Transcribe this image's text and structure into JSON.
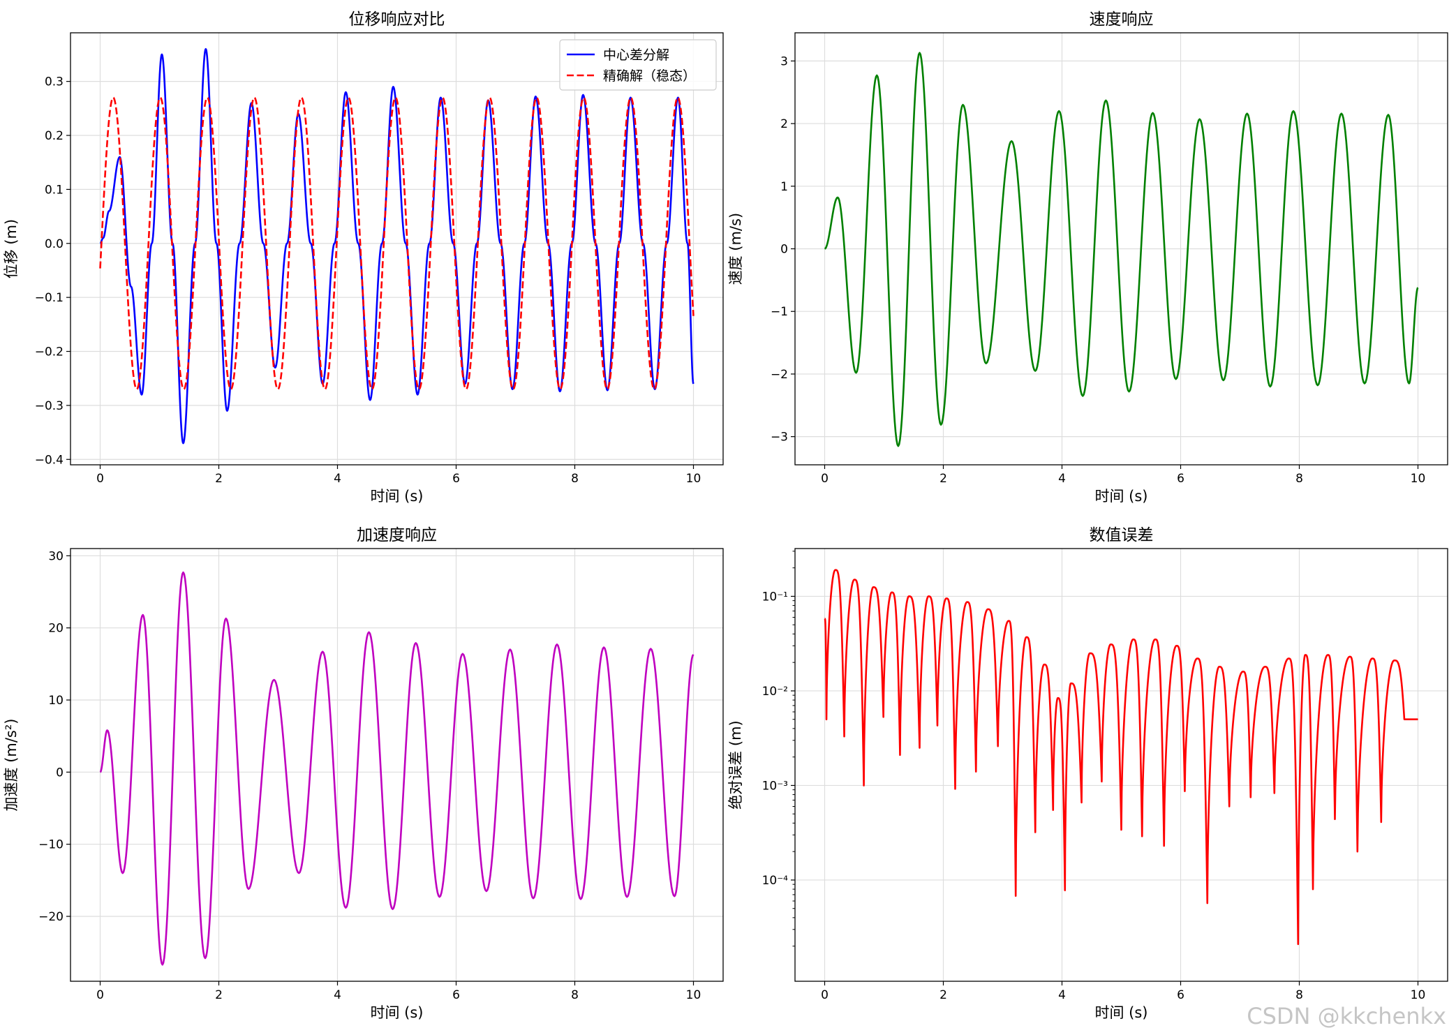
{
  "watermark": "CSDN @kkchenkx",
  "chart_data": [
    {
      "type": "line",
      "title": "位移响应对比",
      "xlabel": "时间 (s)",
      "ylabel": "位移 (m)",
      "xlim": [
        -0.5,
        10.5
      ],
      "ylim": [
        -0.41,
        0.39
      ],
      "xticks": [
        0,
        2,
        4,
        6,
        8,
        10
      ],
      "yticks": [
        -0.4,
        -0.3,
        -0.2,
        -0.1,
        0.0,
        0.1,
        0.2,
        0.3
      ],
      "ytick_labels": [
        "−0.4",
        "−0.3",
        "−0.2",
        "−0.1",
        "0.0",
        "0.1",
        "0.2",
        "0.3"
      ],
      "grid": true,
      "legend": "top-right",
      "series": [
        {
          "name": "中心差分解",
          "color": "#0000ff",
          "style": "solid",
          "x": [
            0,
            0.05,
            0.15,
            0.33,
            0.52,
            0.7,
            0.87,
            1.04,
            1.22,
            1.4,
            1.6,
            1.78,
            1.96,
            2.14,
            2.35,
            2.55,
            2.75,
            2.95,
            3.15,
            3.34,
            3.55,
            3.75,
            3.95,
            4.14,
            4.35,
            4.55,
            4.75,
            4.94,
            5.15,
            5.35,
            5.55,
            5.74,
            5.95,
            6.15,
            6.35,
            6.54,
            6.75,
            6.95,
            7.15,
            7.34,
            7.55,
            7.75,
            7.95,
            8.14,
            8.35,
            8.55,
            8.75,
            8.94,
            9.15,
            9.35,
            9.55,
            9.74,
            9.9,
            10.0
          ],
          "y": [
            0.0,
            0.01,
            0.06,
            0.16,
            -0.08,
            -0.28,
            0.0,
            0.35,
            0.0,
            -0.37,
            0.0,
            0.36,
            0.0,
            -0.31,
            0.0,
            0.26,
            0.0,
            -0.23,
            0.0,
            0.24,
            0.0,
            -0.26,
            0.0,
            0.28,
            0.0,
            -0.29,
            0.0,
            0.29,
            0.0,
            -0.28,
            0.0,
            0.27,
            0.0,
            -0.26,
            0.0,
            0.265,
            0.0,
            -0.27,
            0.0,
            0.272,
            0.0,
            -0.274,
            0.0,
            0.275,
            0.0,
            -0.272,
            0.0,
            0.27,
            0.0,
            -0.27,
            0.0,
            0.27,
            0.0,
            -0.26
          ]
        },
        {
          "name": "精确解（稳态）",
          "color": "#ff0000",
          "style": "dashed",
          "amplitude": 0.27,
          "period": 0.793,
          "peak_time": 0.22,
          "x_range": [
            0,
            10
          ]
        }
      ]
    },
    {
      "type": "line",
      "title": "速度响应",
      "xlabel": "时间 (s)",
      "ylabel": "速度 (m/s)",
      "xlim": [
        -0.5,
        10.5
      ],
      "ylim": [
        -3.45,
        3.45
      ],
      "xticks": [
        0,
        2,
        4,
        6,
        8,
        10
      ],
      "yticks": [
        -3,
        -2,
        -1,
        0,
        1,
        2,
        3
      ],
      "ytick_labels": [
        "−3",
        "−2",
        "−1",
        "0",
        "1",
        "2",
        "3"
      ],
      "grid": true,
      "series": [
        {
          "name": "",
          "color": "#008000",
          "style": "solid",
          "x": [
            0,
            0.22,
            0.53,
            0.88,
            1.24,
            1.6,
            1.96,
            2.33,
            2.72,
            3.15,
            3.55,
            3.95,
            4.35,
            4.74,
            5.13,
            5.53,
            5.92,
            6.32,
            6.72,
            7.12,
            7.51,
            7.9,
            8.31,
            8.71,
            9.1,
            9.5,
            9.85,
            10.0
          ],
          "y": [
            0,
            0.82,
            -1.98,
            2.77,
            -3.15,
            3.13,
            -2.81,
            2.3,
            -1.83,
            1.72,
            -1.95,
            2.2,
            -2.35,
            2.37,
            -2.28,
            2.17,
            -2.08,
            2.07,
            -2.1,
            2.16,
            -2.2,
            2.2,
            -2.18,
            2.16,
            -2.15,
            2.14,
            -2.15,
            -0.62
          ]
        }
      ]
    },
    {
      "type": "line",
      "title": "加速度响应",
      "xlabel": "时间 (s)",
      "ylabel": "加速度 (m/s²)",
      "xlim": [
        -0.5,
        10.5
      ],
      "ylim": [
        -29,
        31
      ],
      "xticks": [
        0,
        2,
        4,
        6,
        8,
        10
      ],
      "yticks": [
        -20,
        -10,
        0,
        10,
        20,
        30
      ],
      "ytick_labels": [
        "−20",
        "−10",
        "0",
        "10",
        "20",
        "30"
      ],
      "grid": true,
      "series": [
        {
          "name": "",
          "color": "#bf00bf",
          "style": "solid",
          "x": [
            0,
            0.12,
            0.38,
            0.72,
            1.05,
            1.4,
            1.77,
            2.12,
            2.5,
            2.93,
            3.35,
            3.75,
            4.14,
            4.53,
            4.93,
            5.32,
            5.72,
            6.11,
            6.51,
            6.91,
            7.3,
            7.7,
            8.1,
            8.49,
            8.88,
            9.28,
            9.68,
            10.0
          ],
          "y": [
            0,
            5.8,
            -14.0,
            21.8,
            -26.7,
            27.7,
            -25.8,
            21.3,
            -16.2,
            12.8,
            -14.0,
            16.7,
            -18.8,
            19.4,
            -19.0,
            17.9,
            -17.3,
            16.4,
            -16.5,
            17.0,
            -17.5,
            17.7,
            -17.6,
            17.3,
            -17.3,
            17.1,
            -17.2,
            16.3
          ]
        }
      ]
    },
    {
      "type": "line",
      "title": "数值误差",
      "xlabel": "时间 (s)",
      "ylabel": "绝对误差 (m)",
      "xlim": [
        -0.5,
        10.5
      ],
      "ylim": [
        8.5e-06,
        0.32
      ],
      "yscale": "log",
      "xticks": [
        0,
        2,
        4,
        6,
        8,
        10
      ],
      "yticks": [
        0.1,
        0.01,
        0.001,
        0.0001
      ],
      "ytick_labels": [
        "10⁻¹",
        "10⁻²",
        "10⁻³",
        "10⁻⁴"
      ],
      "grid": true,
      "series": [
        {
          "name": "",
          "color": "#ff0000",
          "style": "solid",
          "x": [
            0,
            0.03,
            0.18,
            0.33,
            0.5,
            0.66,
            0.82,
            0.99,
            1.13,
            1.27,
            1.42,
            1.6,
            1.75,
            1.9,
            2.05,
            2.2,
            2.4,
            2.55,
            2.75,
            2.92,
            3.1,
            3.22,
            3.4,
            3.55,
            3.7,
            3.85,
            3.93,
            4.05,
            4.15,
            4.33,
            4.47,
            4.67,
            4.82,
            5.0,
            5.2,
            5.35,
            5.57,
            5.72,
            5.93,
            6.07,
            6.28,
            6.45,
            6.65,
            6.82,
            7.05,
            7.18,
            7.42,
            7.58,
            7.82,
            7.98,
            8.1,
            8.23,
            8.48,
            8.6,
            8.85,
            8.98,
            9.23,
            9.38,
            9.6,
            9.77,
            9.92,
            10.0
          ],
          "y": [
            0.058,
            0.005,
            0.19,
            0.0033,
            0.15,
            0.001,
            0.125,
            0.0053,
            0.11,
            0.0021,
            0.1,
            0.0025,
            0.1,
            0.0043,
            0.095,
            0.00092,
            0.087,
            0.0014,
            0.073,
            0.0026,
            0.055,
            6.8e-05,
            0.037,
            0.00032,
            0.019,
            0.00055,
            0.0084,
            7.8e-05,
            0.012,
            0.00066,
            0.025,
            0.0011,
            0.031,
            0.00034,
            0.035,
            0.00029,
            0.035,
            0.00023,
            0.03,
            0.00087,
            0.022,
            5.7e-05,
            0.018,
            0.0006,
            0.016,
            0.00075,
            0.018,
            0.00083,
            0.022,
            2.1e-05,
            0.024,
            8e-05,
            0.024,
            0.00044,
            0.023,
            0.0002,
            0.022,
            0.00041,
            0.021,
            0.005,
            0.005,
            0.005
          ]
        }
      ]
    }
  ]
}
